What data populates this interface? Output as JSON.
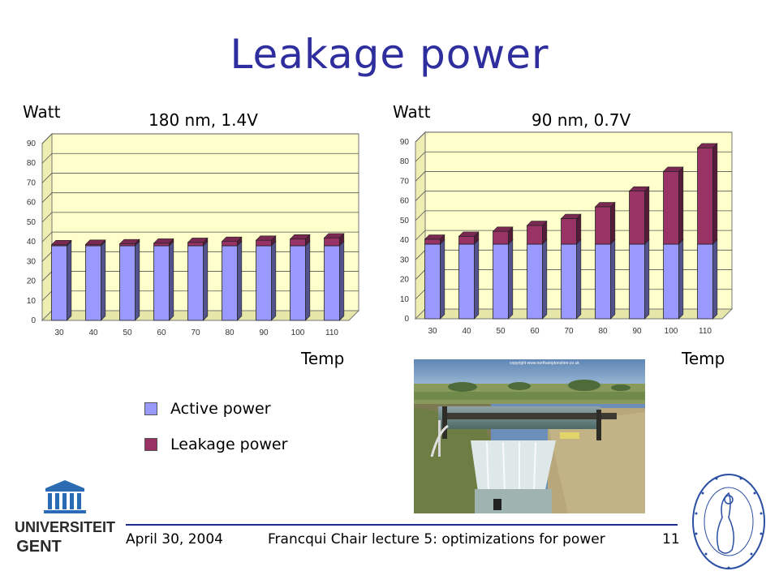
{
  "title": "Leakage power",
  "legend": {
    "active_label": "Active power",
    "leakage_label": "Leakage power",
    "active_color": "#9999ff",
    "leakage_color": "#993366"
  },
  "chart_data": [
    {
      "type": "bar",
      "stacked": true,
      "title": "180 nm, 1.4V",
      "ylabel": "Watt",
      "xlabel": "Temp",
      "categories": [
        "30",
        "40",
        "50",
        "60",
        "70",
        "80",
        "90",
        "100",
        "110"
      ],
      "series": [
        {
          "name": "Active power",
          "values": [
            38,
            38,
            38,
            38,
            38,
            38,
            38,
            38,
            38
          ]
        },
        {
          "name": "Leakage power",
          "values": [
            0.5,
            0.7,
            1,
            1.3,
            1.7,
            2.2,
            2.8,
            3.4,
            4
          ]
        }
      ],
      "ylim": [
        0,
        90
      ],
      "yticks": [
        0,
        10,
        20,
        30,
        40,
        50,
        60,
        70,
        80,
        90
      ],
      "grid": true
    },
    {
      "type": "bar",
      "stacked": true,
      "title": "90 nm, 0.7V",
      "ylabel": "Watt",
      "xlabel": "Temp",
      "categories": [
        "30",
        "40",
        "50",
        "60",
        "70",
        "80",
        "90",
        "100",
        "110"
      ],
      "series": [
        {
          "name": "Active power",
          "values": [
            38,
            38,
            38,
            38,
            38,
            38,
            38,
            38,
            38
          ]
        },
        {
          "name": "Leakage power",
          "values": [
            2.5,
            4,
            6.5,
            9.5,
            13,
            19,
            27,
            37,
            49
          ]
        }
      ],
      "ylim": [
        0,
        90
      ],
      "yticks": [
        0,
        10,
        20,
        30,
        40,
        50,
        60,
        70,
        80,
        90
      ],
      "grid": true
    }
  ],
  "photo": {
    "credit": "copyright www.northamptonshire.co.uk"
  },
  "footer": {
    "date": "April 30, 2004",
    "course": "Francqui Chair lecture 5: optimizations for power",
    "page": "11"
  },
  "logos": {
    "ugent_line1": "UNIVERSITEIT",
    "ugent_line2": "GENT"
  }
}
